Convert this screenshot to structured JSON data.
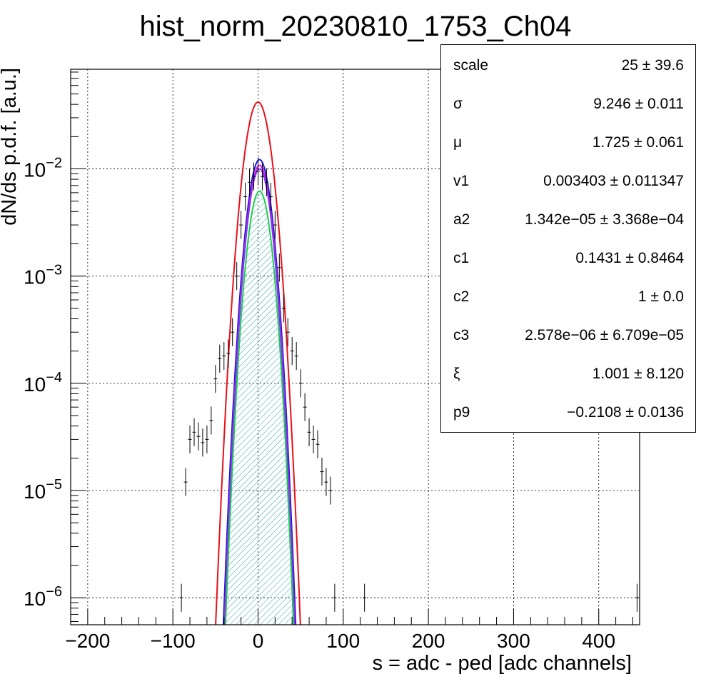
{
  "chart_data": {
    "type": "histogram",
    "title": "hist_norm_20230810_1753_Ch04",
    "xlabel": "s = adc - ped [adc channels]",
    "ylabel": "dN/ds p.d.f. [a.u.]",
    "xlim": [
      -220,
      448
    ],
    "ylim": [
      5.6e-07,
      0.085
    ],
    "ylog": true,
    "grid": true,
    "x_ticks": [
      {
        "value": -200,
        "label": "−200"
      },
      {
        "value": -100,
        "label": "−100"
      },
      {
        "value": 0,
        "label": "0"
      },
      {
        "value": 100,
        "label": "100"
      },
      {
        "value": 200,
        "label": "200"
      },
      {
        "value": 300,
        "label": "300"
      },
      {
        "value": 400,
        "label": "400"
      }
    ],
    "y_ticks": [
      {
        "value": 1e-06,
        "base": "10",
        "exp": "−6"
      },
      {
        "value": 1e-05,
        "base": "10",
        "exp": "−5"
      },
      {
        "value": 0.0001,
        "base": "10",
        "exp": "−4"
      },
      {
        "value": 0.001,
        "base": "10",
        "exp": "−3"
      },
      {
        "value": 0.01,
        "base": "10",
        "exp": "−2"
      }
    ],
    "series": [
      {
        "kind": "data-histogram",
        "color": "#000000",
        "x": [
          -90,
          -85,
          -80,
          -75,
          -70,
          -65,
          -60,
          -55,
          -50,
          -45,
          -40,
          -35,
          -30,
          -25,
          -20,
          -15,
          -10,
          -5,
          0,
          5,
          10,
          15,
          20,
          25,
          30,
          35,
          40,
          45,
          50,
          55,
          60,
          65,
          70,
          75,
          80,
          85,
          90,
          125,
          445
        ],
        "y": [
          1e-06,
          1.2e-05,
          3e-05,
          3.5e-05,
          3.2e-05,
          2.8e-05,
          3e-05,
          4.5e-05,
          0.00011,
          0.00017,
          0.00018,
          0.00019,
          0.0003,
          0.001,
          0.003,
          0.0055,
          0.0075,
          0.0085,
          0.0095,
          0.0085,
          0.0075,
          0.0055,
          0.003,
          0.0012,
          0.0005,
          0.0003,
          0.0002,
          0.00018,
          0.0001,
          6e-05,
          3.5e-05,
          3e-05,
          2.7e-05,
          1.5e-05,
          1.2e-05,
          1e-05,
          1e-06,
          1e-06,
          1e-06
        ]
      },
      {
        "kind": "fit-curve",
        "color": "#e8101a",
        "peak": 0.042,
        "mu": 0.0,
        "sigma": 10.5
      },
      {
        "kind": "fit-curve",
        "color": "#1a1ad4",
        "peak": 0.0122,
        "mu": 1.725,
        "sigma": 9.5
      },
      {
        "kind": "fit-curve",
        "color": "#e010e0",
        "peak": 0.0108,
        "mu": 1.725,
        "sigma": 9.3
      },
      {
        "kind": "fit-curve",
        "color": "#7a38f0",
        "peak": 0.01,
        "mu": 1.725,
        "sigma": 9.25
      },
      {
        "kind": "fit-curve",
        "color": "#22cc55",
        "peak": 0.0062,
        "mu": 1.725,
        "sigma": 9.25
      }
    ],
    "fill_color": "#1aa0a0",
    "legend_position": "top-right"
  },
  "stats": [
    {
      "name": "scale",
      "value": "25 ± 39.6"
    },
    {
      "name": "σ",
      "value": "9.246 ± 0.011"
    },
    {
      "name": "μ",
      "value": "1.725 ± 0.061"
    },
    {
      "name": "v1",
      "value": "0.003403 ± 0.011347"
    },
    {
      "name": "a2",
      "value": "1.342e−05 ± 3.368e−04"
    },
    {
      "name": "c1",
      "value": "0.1431 ± 0.8464"
    },
    {
      "name": "c2",
      "value": "1 ± 0.0"
    },
    {
      "name": "c3",
      "value": "2.578e−06 ± 6.709e−05"
    },
    {
      "name": "ξ",
      "value": "1.001 ± 8.120"
    },
    {
      "name": "p9",
      "value": "−0.2108 ± 0.0136"
    }
  ]
}
